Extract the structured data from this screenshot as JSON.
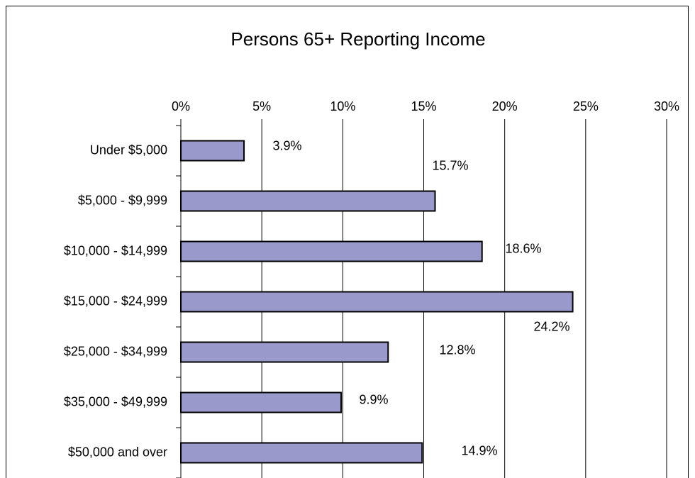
{
  "chart_data": {
    "type": "bar",
    "orientation": "horizontal",
    "title": "Persons 65+ Reporting Income",
    "categories": [
      "Under $5,000",
      "$5,000 - $9,999",
      "$10,000 - $14,999",
      "$15,000 - $24,999",
      "$25,000 - $34,999",
      "$35,000 - $49,999",
      "$50,000 and over"
    ],
    "values": [
      3.9,
      15.7,
      18.6,
      24.2,
      12.8,
      9.9,
      14.9
    ],
    "value_labels": [
      "3.9%",
      "15.7%",
      "18.6%",
      "24.2%",
      "12.8%",
      "9.9%",
      "14.9%"
    ],
    "color": "#9999cc",
    "xlim": [
      0,
      30
    ],
    "xticks": [
      {
        "value": 0,
        "label": "0%"
      },
      {
        "value": 5,
        "label": "5%"
      },
      {
        "value": 10,
        "label": "10%"
      },
      {
        "value": 15,
        "label": "15%"
      },
      {
        "value": 20,
        "label": "20%"
      },
      {
        "value": 25,
        "label": "25%"
      },
      {
        "value": 30,
        "label": "30%"
      }
    ],
    "grid": true
  }
}
